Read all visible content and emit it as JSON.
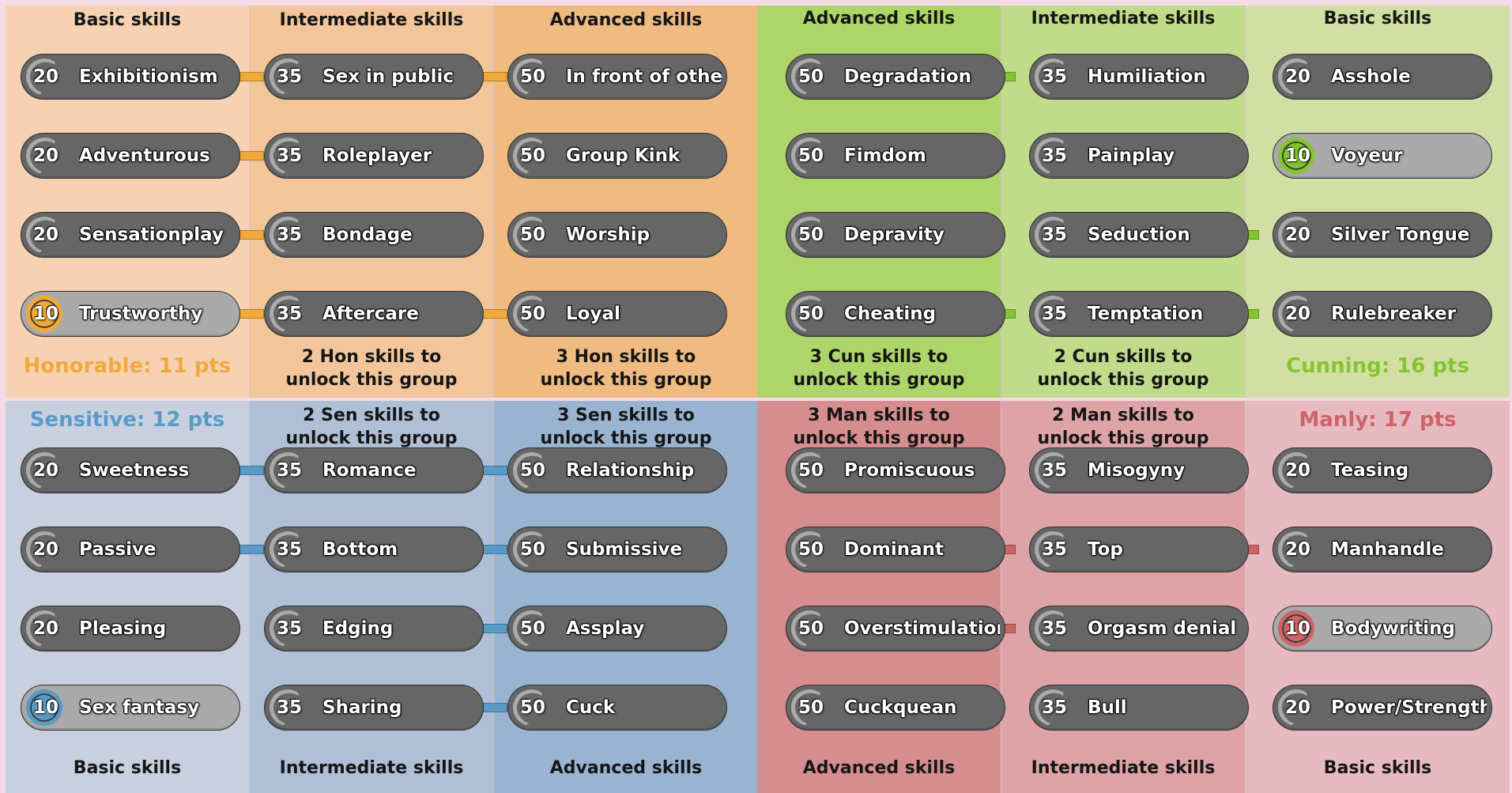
{
  "groups": {
    "honorable": {
      "accent": "#f2a93b",
      "col_bg": [
        "#f6d2b3",
        "#f2c69a",
        "#f0bb80"
      ],
      "headers": [
        "Basic skills",
        "Intermediate skills",
        "Advanced skills"
      ],
      "points_label": "Honorable: 11 pts",
      "unlock_notes": [
        "2 Hon skills to\nunlock this group",
        "3 Hon skills to\nunlock this group"
      ],
      "skills": [
        [
          {
            "cost": "20",
            "name": "Exhibitionism"
          },
          {
            "cost": "20",
            "name": "Adventurous"
          },
          {
            "cost": "20",
            "name": "Sensationplay"
          },
          {
            "cost": "10",
            "name": "Trustworthy",
            "active": true
          }
        ],
        [
          {
            "cost": "35",
            "name": "Sex in public"
          },
          {
            "cost": "35",
            "name": "Roleplayer"
          },
          {
            "cost": "35",
            "name": "Bondage"
          },
          {
            "cost": "35",
            "name": "Aftercare"
          }
        ],
        [
          {
            "cost": "50",
            "name": "In front of others"
          },
          {
            "cost": "50",
            "name": "Group Kink"
          },
          {
            "cost": "50",
            "name": "Worship"
          },
          {
            "cost": "50",
            "name": "Loyal"
          }
        ]
      ]
    },
    "cunning": {
      "accent": "#84c52f",
      "col_bg": [
        "#aed56a",
        "#c0db89",
        "#d2dfa4"
      ],
      "headers": [
        "Advanced skills",
        "Intermediate skills",
        "Basic skills"
      ],
      "points_label": "Cunning: 16 pts",
      "unlock_notes": [
        "3 Cun skills to\nunlock this group",
        "2 Cun skills to\nunlock this group"
      ],
      "skills": [
        [
          {
            "cost": "50",
            "name": "Degradation"
          },
          {
            "cost": "50",
            "name": "Fimdom"
          },
          {
            "cost": "50",
            "name": "Depravity"
          },
          {
            "cost": "50",
            "name": "Cheating"
          }
        ],
        [
          {
            "cost": "35",
            "name": "Humiliation"
          },
          {
            "cost": "35",
            "name": "Painplay"
          },
          {
            "cost": "35",
            "name": "Seduction"
          },
          {
            "cost": "35",
            "name": "Temptation"
          }
        ],
        [
          {
            "cost": "20",
            "name": "Asshole"
          },
          {
            "cost": "10",
            "name": "Voyeur",
            "active": true
          },
          {
            "cost": "20",
            "name": "Silver Tongue"
          },
          {
            "cost": "20",
            "name": "Rulebreaker"
          }
        ]
      ]
    },
    "sensitive": {
      "accent": "#5a9bc6",
      "col_bg": [
        "#c8d0e0",
        "#aebfd6",
        "#98b4d0"
      ],
      "headers": [
        "Basic skills",
        "Intermediate skills",
        "Advanced skills"
      ],
      "points_label": "Sensitive: 12 pts",
      "unlock_notes": [
        "2 Sen skills to\nunlock this group",
        "3 Sen skills to\nunlock this group"
      ],
      "skills": [
        [
          {
            "cost": "20",
            "name": "Sweetness"
          },
          {
            "cost": "20",
            "name": "Passive"
          },
          {
            "cost": "20",
            "name": "Pleasing"
          },
          {
            "cost": "10",
            "name": "Sex fantasy",
            "active": true
          }
        ],
        [
          {
            "cost": "35",
            "name": "Romance"
          },
          {
            "cost": "35",
            "name": "Bottom"
          },
          {
            "cost": "35",
            "name": "Edging"
          },
          {
            "cost": "35",
            "name": "Sharing"
          }
        ],
        [
          {
            "cost": "50",
            "name": "Relationship"
          },
          {
            "cost": "50",
            "name": "Submissive"
          },
          {
            "cost": "50",
            "name": "Assplay"
          },
          {
            "cost": "50",
            "name": "Cuck"
          }
        ]
      ]
    },
    "manly": {
      "accent": "#cc6468",
      "col_bg": [
        "#d68d90",
        "#dea3a6",
        "#e6bac0"
      ],
      "headers": [
        "Advanced  skills",
        "Intermediate skills",
        "Basic skills"
      ],
      "points_label": "Manly: 17 pts",
      "unlock_notes": [
        "3 Man skills to\nunlock this group",
        "2 Man skills to\nunlock this group"
      ],
      "skills": [
        [
          {
            "cost": "50",
            "name": "Promiscuous"
          },
          {
            "cost": "50",
            "name": "Dominant"
          },
          {
            "cost": "50",
            "name": "Overstimulation"
          },
          {
            "cost": "50",
            "name": "Cuckquean"
          }
        ],
        [
          {
            "cost": "35",
            "name": "Misogyny"
          },
          {
            "cost": "35",
            "name": "Top"
          },
          {
            "cost": "35",
            "name": "Orgasm denial"
          },
          {
            "cost": "35",
            "name": "Bull"
          }
        ],
        [
          {
            "cost": "20",
            "name": "Teasing"
          },
          {
            "cost": "20",
            "name": "Manhandle"
          },
          {
            "cost": "10",
            "name": "Bodywriting",
            "active": true
          },
          {
            "cost": "20",
            "name": "Power/Strength"
          }
        ]
      ]
    }
  }
}
